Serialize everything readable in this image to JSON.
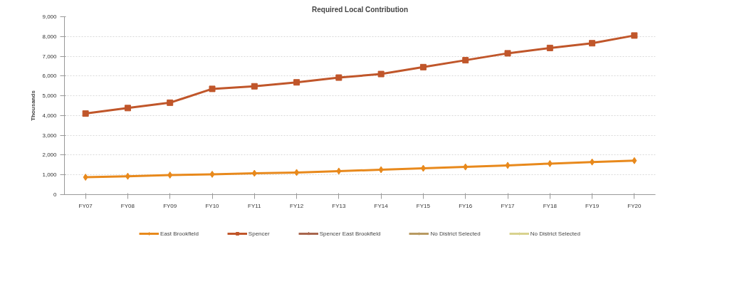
{
  "chart_data": {
    "type": "line",
    "title": "Required Local Contribution",
    "ylabel": "Thousands",
    "categories": [
      "FY07",
      "FY08",
      "FY09",
      "FY10",
      "FY11",
      "FY12",
      "FY13",
      "FY14",
      "FY15",
      "FY16",
      "FY17",
      "FY18",
      "FY19",
      "FY20"
    ],
    "series": [
      {
        "name": "East Brookfield",
        "color": "#e8891c",
        "marker": "diamond",
        "values": [
          880,
          930,
          990,
          1030,
          1080,
          1120,
          1190,
          1260,
          1330,
          1400,
          1480,
          1570,
          1650,
          1720
        ]
      },
      {
        "name": "Spencer",
        "color": "#c0562a",
        "marker": "square",
        "values": [
          4100,
          4380,
          4650,
          5350,
          5480,
          5680,
          5920,
          6100,
          6450,
          6800,
          7150,
          7420,
          7660,
          8050
        ]
      },
      {
        "name": "Spencer East Brookfield",
        "color": "#a8664e",
        "marker": "triangle",
        "values": [
          null,
          null,
          null,
          null,
          null,
          null,
          null,
          null,
          null,
          null,
          null,
          null,
          null,
          null
        ]
      },
      {
        "name": "No District Selected",
        "color": "#b89a62",
        "marker": "cross",
        "values": [
          null,
          null,
          null,
          null,
          null,
          null,
          null,
          null,
          null,
          null,
          null,
          null,
          null,
          null
        ]
      },
      {
        "name": "No District Selected",
        "color": "#d8d28e",
        "marker": "cross",
        "values": [
          null,
          null,
          null,
          null,
          null,
          null,
          null,
          null,
          null,
          null,
          null,
          null,
          null,
          null
        ]
      }
    ],
    "ylim": [
      0,
      9000
    ],
    "yticks": [
      {
        "value": 0,
        "label": "0"
      },
      {
        "value": 1000,
        "label": "1,000"
      },
      {
        "value": 2000,
        "label": "2,000"
      },
      {
        "value": 3000,
        "label": "3,000"
      },
      {
        "value": 4000,
        "label": "4,000"
      },
      {
        "value": 5000,
        "label": "5,000"
      },
      {
        "value": 6000,
        "label": "6,000"
      },
      {
        "value": 7000,
        "label": "7,000"
      },
      {
        "value": 8000,
        "label": "8,000"
      },
      {
        "value": 9000,
        "label": "9,000"
      }
    ],
    "grid": "y",
    "legend": "bottom",
    "line_style": "solid"
  }
}
